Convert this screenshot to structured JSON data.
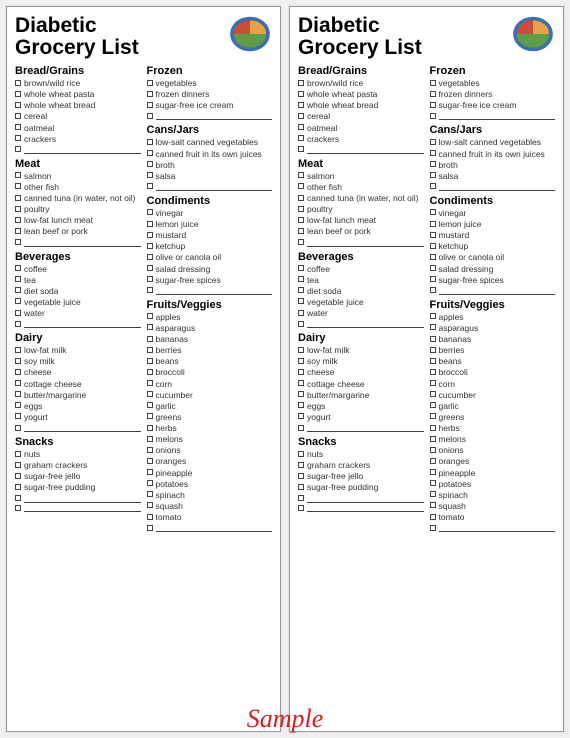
{
  "title": "Diabetic\nGrocery List",
  "watermark": "Sample",
  "colors": {
    "background": "#f0f0f0",
    "card_bg": "#ffffff",
    "text": "#000000",
    "item_text": "#333333",
    "watermark": "#d42020",
    "plate_blue": "#3b6fb5",
    "plate_orange": "#e8a04a",
    "plate_red": "#c94d3a",
    "plate_green": "#5a9d4b"
  },
  "left_sections": [
    {
      "title": "Bread/Grains",
      "items": [
        "brown/wild rice",
        "whole wheat pasta",
        "whole wheat bread",
        "cereal",
        "oatmeal",
        "crackers"
      ],
      "blanks": 1
    },
    {
      "title": "Meat",
      "items": [
        "salmon",
        "other fish",
        "canned tuna (in water, not oil)",
        "poultry",
        "low-fat lunch meat",
        "lean beef or pork"
      ],
      "blanks": 1
    },
    {
      "title": "Beverages",
      "items": [
        "coffee",
        "tea",
        "diet soda",
        "vegetable juice",
        "water"
      ],
      "blanks": 1
    },
    {
      "title": "Dairy",
      "items": [
        "low-fat milk",
        "soy milk",
        "cheese",
        "cottage cheese",
        "butter/margarine",
        "eggs",
        "yogurt"
      ],
      "blanks": 1
    },
    {
      "title": "Snacks",
      "items": [
        "nuts",
        "graham crackers",
        "sugar-free jello",
        "sugar-free pudding"
      ],
      "blanks": 2
    }
  ],
  "right_sections": [
    {
      "title": "Frozen",
      "items": [
        "vegetables",
        "frozen dinners",
        "sugar-free ice cream"
      ],
      "blanks": 1
    },
    {
      "title": "Cans/Jars",
      "items": [
        "low-salt canned vegetables",
        "canned fruit in its own juices",
        "broth",
        "salsa"
      ],
      "blanks": 1
    },
    {
      "title": "Condiments",
      "items": [
        "vinegar",
        "lemon juice",
        "mustard",
        "ketchup",
        "olive or canola oil",
        "salad dressing",
        "sugar-free spices"
      ],
      "blanks": 1
    },
    {
      "title": "Fruits/Veggies",
      "items": [
        "apples",
        "asparagus",
        "bananas",
        "berries",
        "beans",
        "broccoli",
        "corn",
        "cucumber",
        "garlic",
        "greens",
        "herbs",
        "melons",
        "onions",
        "oranges",
        "pineapple",
        "potatoes",
        "spinach",
        "squash",
        "tomato"
      ],
      "blanks": 1
    }
  ]
}
